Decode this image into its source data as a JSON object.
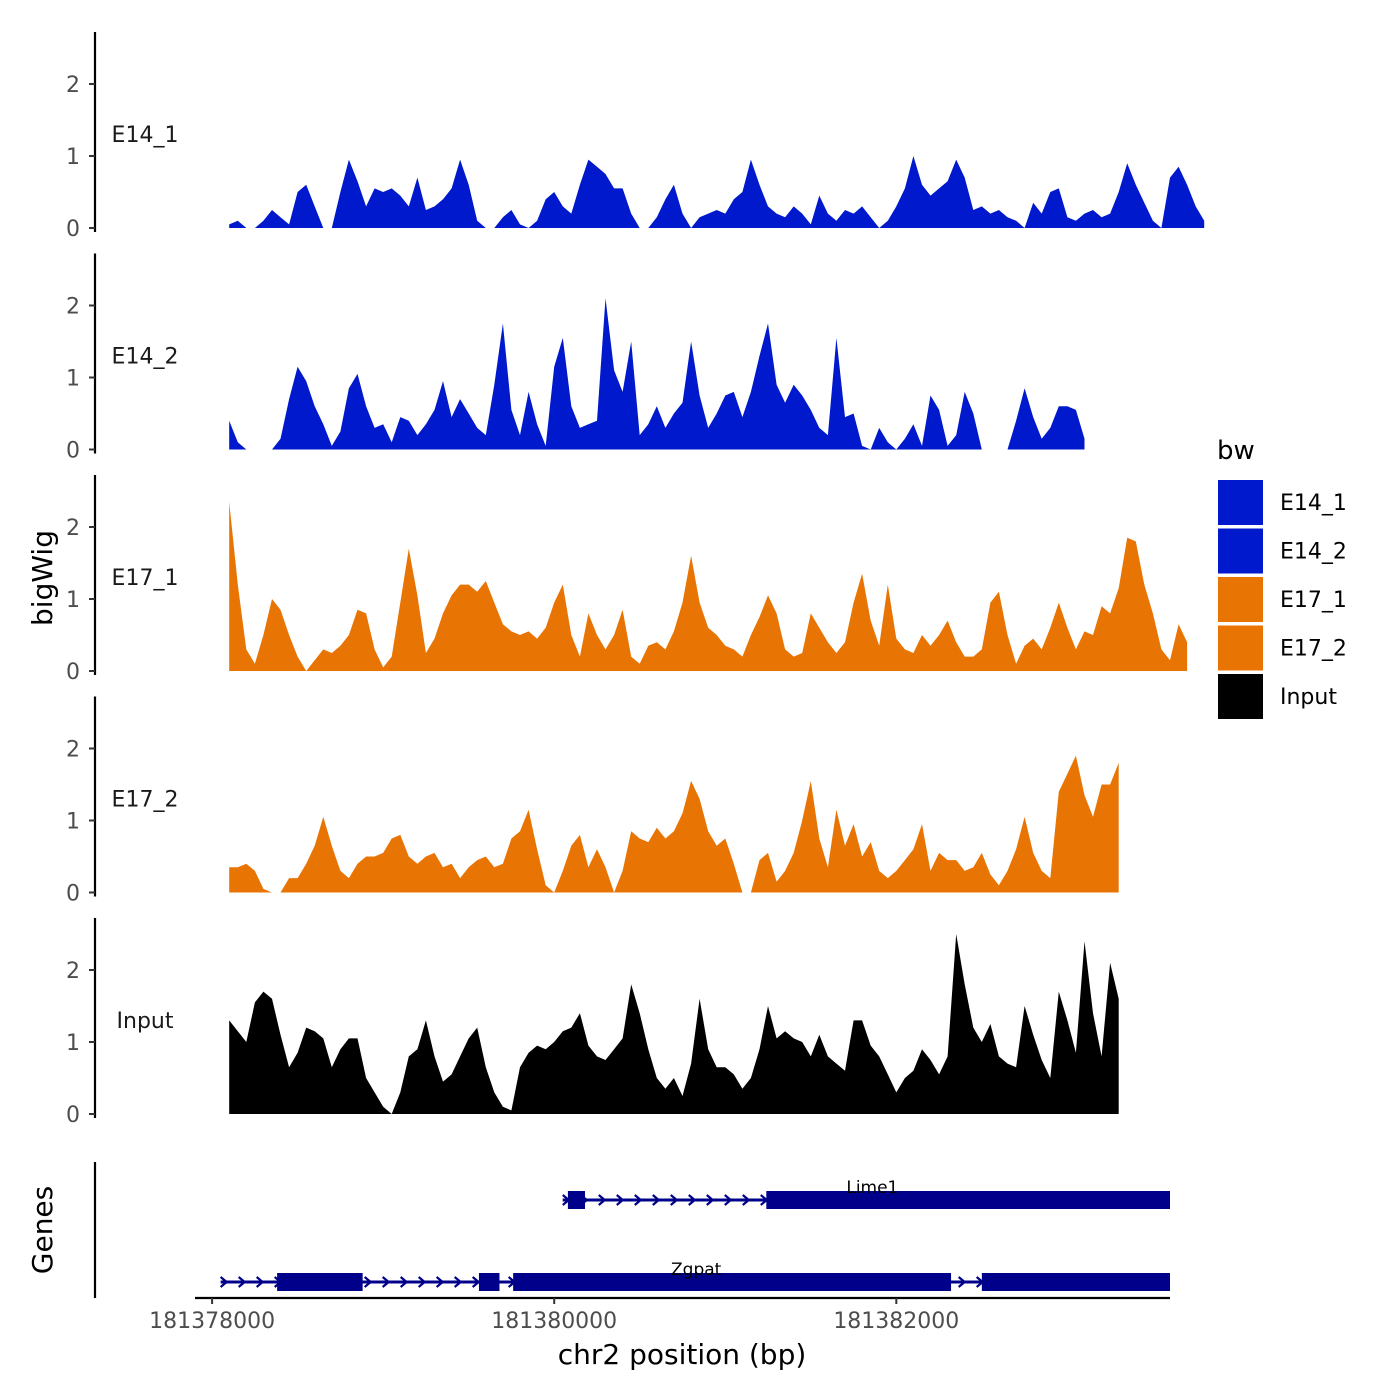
{
  "chart_data": {
    "type": "area",
    "y_axis_title": "bigWig",
    "x_axis_title": "chr2 position (bp)",
    "genes_axis_title": "Genes",
    "xlim": [
      181377900,
      181383600
    ],
    "ylim": [
      0,
      2.6
    ],
    "x_ticks": [
      181378000,
      181380000,
      181382000
    ],
    "x_tick_labels": [
      "181378000",
      "181380000",
      "181382000"
    ],
    "y_ticks": [
      0,
      1,
      2
    ],
    "y_tick_labels": [
      "0",
      "1",
      "2"
    ],
    "legend": {
      "title": "bw",
      "position": "right",
      "entries": [
        {
          "label": "E14_1",
          "color": "#0019CC"
        },
        {
          "label": "E14_2",
          "color": "#0019CC"
        },
        {
          "label": "E17_1",
          "color": "#E87404"
        },
        {
          "label": "E17_2",
          "color": "#E87404"
        },
        {
          "label": "Input",
          "color": "#000000"
        }
      ]
    },
    "x_start": 181378100,
    "bin_size": 50,
    "series": [
      {
        "name": "E14_1",
        "label": "E14_1",
        "color": "#0019CC",
        "values": [
          0.05,
          0.1,
          0,
          0,
          0.1,
          0.25,
          0.15,
          0.05,
          0.5,
          0.6,
          0.3,
          0,
          0,
          0.5,
          0.95,
          0.65,
          0.3,
          0.55,
          0.5,
          0.55,
          0.45,
          0.3,
          0.7,
          0.25,
          0.3,
          0.4,
          0.55,
          0.95,
          0.6,
          0.1,
          0,
          0,
          0.15,
          0.25,
          0.05,
          0,
          0.1,
          0.4,
          0.5,
          0.3,
          0.2,
          0.6,
          0.95,
          0.85,
          0.75,
          0.55,
          0.55,
          0.2,
          0,
          0,
          0.15,
          0.4,
          0.6,
          0.2,
          0,
          0.15,
          0.2,
          0.25,
          0.2,
          0.4,
          0.5,
          0.95,
          0.6,
          0.3,
          0.2,
          0.15,
          0.3,
          0.2,
          0.05,
          0.45,
          0.2,
          0.1,
          0.25,
          0.2,
          0.3,
          0.15,
          0,
          0.1,
          0.3,
          0.55,
          1.0,
          0.6,
          0.45,
          0.55,
          0.65,
          0.95,
          0.7,
          0.25,
          0.3,
          0.2,
          0.25,
          0.15,
          0.1,
          0,
          0.35,
          0.2,
          0.5,
          0.55,
          0.15,
          0.1,
          0.2,
          0.25,
          0.15,
          0.2,
          0.5,
          0.9,
          0.6,
          0.35,
          0.1,
          0,
          0.7,
          0.85,
          0.6,
          0.3,
          0.1
        ]
      },
      {
        "name": "E14_2",
        "label": "E14_2",
        "color": "#0019CC",
        "values": [
          0.4,
          0.1,
          0,
          0,
          0,
          0,
          0.15,
          0.7,
          1.15,
          0.95,
          0.6,
          0.35,
          0.05,
          0.25,
          0.85,
          1.05,
          0.6,
          0.3,
          0.35,
          0.1,
          0.45,
          0.4,
          0.2,
          0.35,
          0.55,
          0.95,
          0.45,
          0.7,
          0.5,
          0.3,
          0.2,
          0.9,
          1.75,
          0.55,
          0.2,
          0.8,
          0.35,
          0.05,
          1.15,
          1.55,
          0.6,
          0.3,
          0.35,
          0.4,
          2.1,
          1.1,
          0.8,
          1.5,
          0.2,
          0.35,
          0.6,
          0.3,
          0.5,
          0.65,
          1.5,
          0.75,
          0.3,
          0.5,
          0.75,
          0.8,
          0.45,
          0.8,
          1.3,
          1.75,
          0.9,
          0.65,
          0.9,
          0.75,
          0.55,
          0.3,
          0.2,
          1.55,
          0.45,
          0.5,
          0.05,
          0,
          0.3,
          0.1,
          0,
          0.15,
          0.35,
          0.05,
          0.75,
          0.55,
          0.05,
          0.2,
          0.8,
          0.5,
          0,
          0,
          0,
          0,
          0.4,
          0.85,
          0.45,
          0.15,
          0.3,
          0.6,
          0.6,
          0.55,
          0.15
        ]
      },
      {
        "name": "E17_1",
        "label": "E17_1",
        "color": "#E87404",
        "values": [
          2.35,
          1.2,
          0.3,
          0.1,
          0.5,
          1.0,
          0.85,
          0.5,
          0.2,
          0,
          0.15,
          0.3,
          0.25,
          0.35,
          0.5,
          0.85,
          0.8,
          0.3,
          0.05,
          0.2,
          0.95,
          1.7,
          1.05,
          0.25,
          0.45,
          0.8,
          1.05,
          1.2,
          1.2,
          1.1,
          1.25,
          0.95,
          0.65,
          0.55,
          0.5,
          0.55,
          0.45,
          0.6,
          0.95,
          1.2,
          0.5,
          0.2,
          0.8,
          0.5,
          0.3,
          0.5,
          0.85,
          0.2,
          0.1,
          0.35,
          0.4,
          0.3,
          0.55,
          0.95,
          1.6,
          0.95,
          0.6,
          0.5,
          0.35,
          0.3,
          0.2,
          0.5,
          0.75,
          1.05,
          0.8,
          0.3,
          0.2,
          0.25,
          0.8,
          0.6,
          0.4,
          0.25,
          0.4,
          0.95,
          1.35,
          0.7,
          0.35,
          1.2,
          0.45,
          0.3,
          0.25,
          0.5,
          0.35,
          0.5,
          0.7,
          0.4,
          0.2,
          0.2,
          0.3,
          0.95,
          1.1,
          0.5,
          0.1,
          0.35,
          0.45,
          0.3,
          0.6,
          0.95,
          0.6,
          0.3,
          0.55,
          0.5,
          0.9,
          0.8,
          1.15,
          1.85,
          1.8,
          1.2,
          0.8,
          0.3,
          0.15,
          0.65,
          0.4
        ]
      },
      {
        "name": "E17_2",
        "label": "E17_2",
        "color": "#E87404",
        "values": [
          0.35,
          0.35,
          0.4,
          0.3,
          0.05,
          0,
          0,
          0.2,
          0.2,
          0.4,
          0.65,
          1.05,
          0.65,
          0.3,
          0.2,
          0.4,
          0.5,
          0.5,
          0.55,
          0.75,
          0.8,
          0.5,
          0.4,
          0.5,
          0.55,
          0.35,
          0.4,
          0.2,
          0.35,
          0.45,
          0.5,
          0.35,
          0.4,
          0.75,
          0.85,
          1.15,
          0.6,
          0.1,
          0,
          0.3,
          0.65,
          0.8,
          0.35,
          0.6,
          0.35,
          0,
          0.3,
          0.85,
          0.75,
          0.7,
          0.9,
          0.75,
          0.85,
          1.1,
          1.55,
          1.3,
          0.85,
          0.65,
          0.75,
          0.4,
          0,
          0,
          0.45,
          0.55,
          0.15,
          0.3,
          0.55,
          1.0,
          1.55,
          0.75,
          0.35,
          1.15,
          0.65,
          0.95,
          0.5,
          0.7,
          0.3,
          0.2,
          0.3,
          0.45,
          0.6,
          0.95,
          0.3,
          0.55,
          0.45,
          0.45,
          0.3,
          0.35,
          0.55,
          0.25,
          0.1,
          0.3,
          0.6,
          1.05,
          0.55,
          0.3,
          0.2,
          1.4,
          1.65,
          1.9,
          1.35,
          1.05,
          1.5,
          1.5,
          1.8
        ]
      },
      {
        "name": "Input",
        "label": "Input",
        "color": "#000000",
        "values": [
          1.3,
          1.15,
          1.0,
          1.55,
          1.7,
          1.6,
          1.1,
          0.65,
          0.85,
          1.2,
          1.15,
          1.05,
          0.65,
          0.9,
          1.05,
          1.05,
          0.5,
          0.3,
          0.1,
          0,
          0.3,
          0.8,
          0.9,
          1.3,
          0.8,
          0.45,
          0.55,
          0.8,
          1.05,
          1.2,
          0.65,
          0.3,
          0.1,
          0.05,
          0.65,
          0.85,
          0.95,
          0.9,
          1.0,
          1.15,
          1.2,
          1.4,
          0.95,
          0.8,
          0.75,
          0.9,
          1.05,
          1.8,
          1.4,
          0.9,
          0.5,
          0.35,
          0.5,
          0.25,
          0.7,
          1.6,
          0.9,
          0.65,
          0.65,
          0.55,
          0.35,
          0.5,
          0.9,
          1.5,
          1.05,
          1.15,
          1.05,
          1.0,
          0.8,
          1.1,
          0.8,
          0.7,
          0.6,
          1.3,
          1.3,
          0.95,
          0.8,
          0.55,
          0.3,
          0.5,
          0.6,
          0.9,
          0.75,
          0.55,
          0.8,
          2.5,
          1.8,
          1.2,
          1.0,
          1.25,
          0.8,
          0.7,
          0.65,
          1.5,
          1.1,
          0.75,
          0.5,
          1.7,
          1.3,
          0.85,
          2.4,
          1.4,
          0.8,
          2.1,
          1.6
        ]
      }
    ],
    "genes": [
      {
        "name": "Lime1",
        "start": 181380050,
        "end": 181383600,
        "strand": "+",
        "exons": [
          [
            181380080,
            181380180
          ],
          [
            181381240,
            181383600
          ]
        ]
      },
      {
        "name": "Zgpat",
        "start": 181378050,
        "end": 181383600,
        "strand": "+",
        "exons": [
          [
            181378380,
            181378880
          ],
          [
            181379560,
            181379680
          ],
          [
            181379760,
            181382320
          ],
          [
            181382500,
            181383600
          ]
        ]
      }
    ]
  }
}
